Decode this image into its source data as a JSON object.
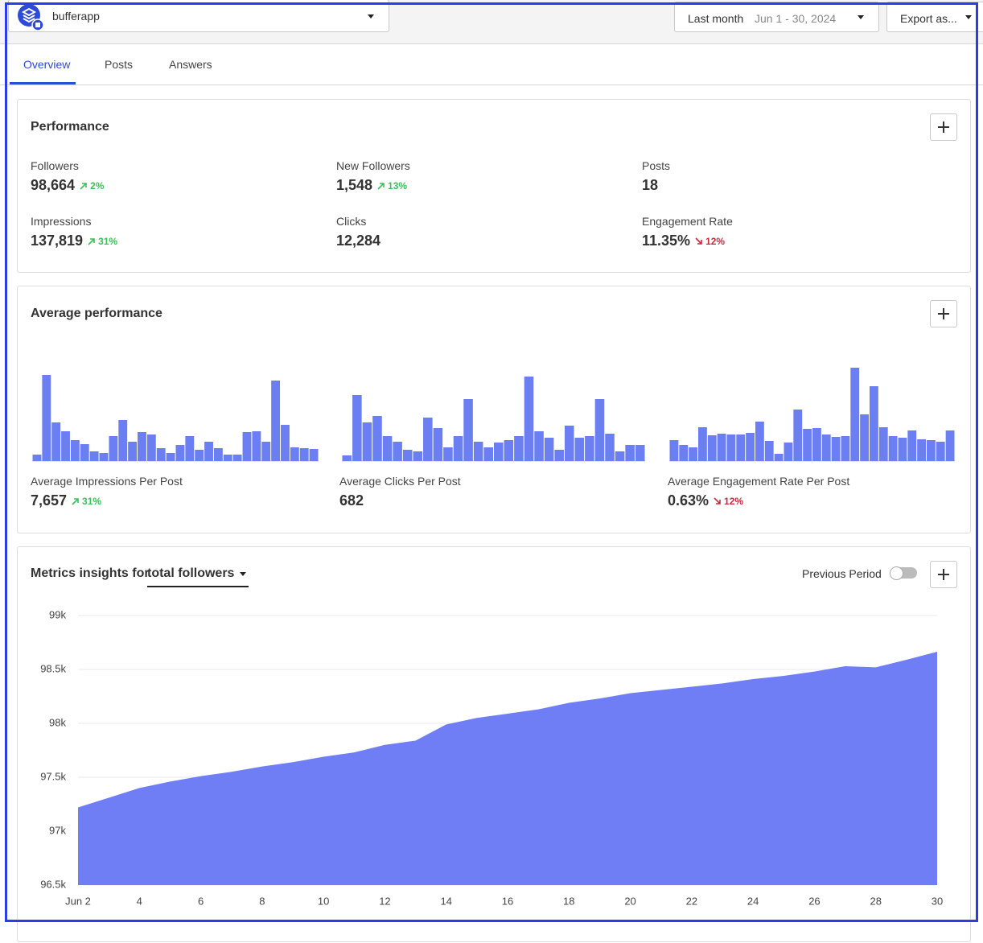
{
  "header": {
    "account": "bufferapp",
    "date_preset": "Last month",
    "date_range": "Jun 1 - 30, 2024",
    "export": "Export as..."
  },
  "tabs": [
    "Overview",
    "Posts",
    "Answers"
  ],
  "active_tab": 0,
  "performance": {
    "title": "Performance",
    "metrics": [
      {
        "label": "Followers",
        "value": "98,664",
        "change": "2%",
        "trend": "up"
      },
      {
        "label": "New Followers",
        "value": "1,548",
        "change": "13%",
        "trend": "up"
      },
      {
        "label": "Posts",
        "value": "18"
      },
      {
        "label": "Impressions",
        "value": "137,819",
        "change": "31%",
        "trend": "up"
      },
      {
        "label": "Clicks",
        "value": "12,284"
      },
      {
        "label": "Engagement Rate",
        "value": "11.35%",
        "change": "12%",
        "trend": "down"
      }
    ]
  },
  "average_performance": {
    "title": "Average performance",
    "metrics": [
      {
        "label": "Average Impressions Per Post",
        "value": "7,657",
        "change": "31%",
        "trend": "up"
      },
      {
        "label": "Average Clicks Per Post",
        "value": "682"
      },
      {
        "label": "Average Engagement Rate Per Post",
        "value": "0.63%",
        "change": "12%",
        "trend": "down"
      }
    ]
  },
  "metrics_insights": {
    "title": "Metrics insights for",
    "metric": "total followers",
    "toggle_label": "Previous Period",
    "toggle_on": false
  },
  "chart_data": [
    {
      "type": "bar",
      "color": "#6b7ff2",
      "values": [
        8,
        107,
        48,
        37,
        26,
        21,
        12,
        10,
        31,
        51,
        24,
        36,
        33,
        16,
        10,
        20,
        31,
        14,
        24,
        16,
        8,
        8,
        36,
        37,
        24,
        100,
        45,
        17,
        16,
        15
      ]
    },
    {
      "type": "bar",
      "color": "#6b7ff2",
      "values": [
        7,
        82,
        48,
        56,
        31,
        24,
        14,
        12,
        54,
        41,
        17,
        31,
        77,
        24,
        17,
        23,
        26,
        31,
        105,
        37,
        29,
        14,
        44,
        29,
        31,
        77,
        34,
        12,
        20,
        20
      ]
    },
    {
      "type": "bar",
      "color": "#6b7ff2",
      "values": [
        26,
        20,
        17,
        42,
        32,
        34,
        33,
        33,
        35,
        49,
        25,
        9,
        23,
        64,
        40,
        41,
        33,
        30,
        31,
        116,
        58,
        93,
        42,
        31,
        29,
        38,
        27,
        26,
        24,
        38
      ]
    },
    {
      "type": "area",
      "color": "#6f7ef5",
      "x": [
        2,
        3,
        4,
        5,
        6,
        7,
        8,
        9,
        10,
        11,
        12,
        13,
        14,
        15,
        16,
        17,
        18,
        19,
        20,
        21,
        22,
        23,
        24,
        25,
        26,
        27,
        28,
        29,
        30
      ],
      "values": [
        97220,
        97310,
        97400,
        97460,
        97510,
        97550,
        97600,
        97640,
        97690,
        97730,
        97800,
        97840,
        97990,
        98050,
        98090,
        98130,
        98190,
        98230,
        98280,
        98310,
        98340,
        98370,
        98410,
        98440,
        98480,
        98530,
        98520,
        98590,
        98664
      ],
      "xlim": [
        2,
        30
      ],
      "ylim": [
        96500,
        99000
      ],
      "xticks": [
        {
          "value": 2,
          "label": "Jun 2"
        },
        4,
        6,
        8,
        10,
        12,
        14,
        16,
        18,
        20,
        22,
        24,
        26,
        28,
        30
      ],
      "yticks": [
        {
          "value": 96500,
          "label": "96.5k"
        },
        {
          "value": 97000,
          "label": "97k"
        },
        {
          "value": 97500,
          "label": "97.5k"
        },
        {
          "value": 98000,
          "label": "98k"
        },
        {
          "value": 98500,
          "label": "98.5k"
        },
        {
          "value": 99000,
          "label": "99k"
        }
      ],
      "grid": true
    }
  ]
}
